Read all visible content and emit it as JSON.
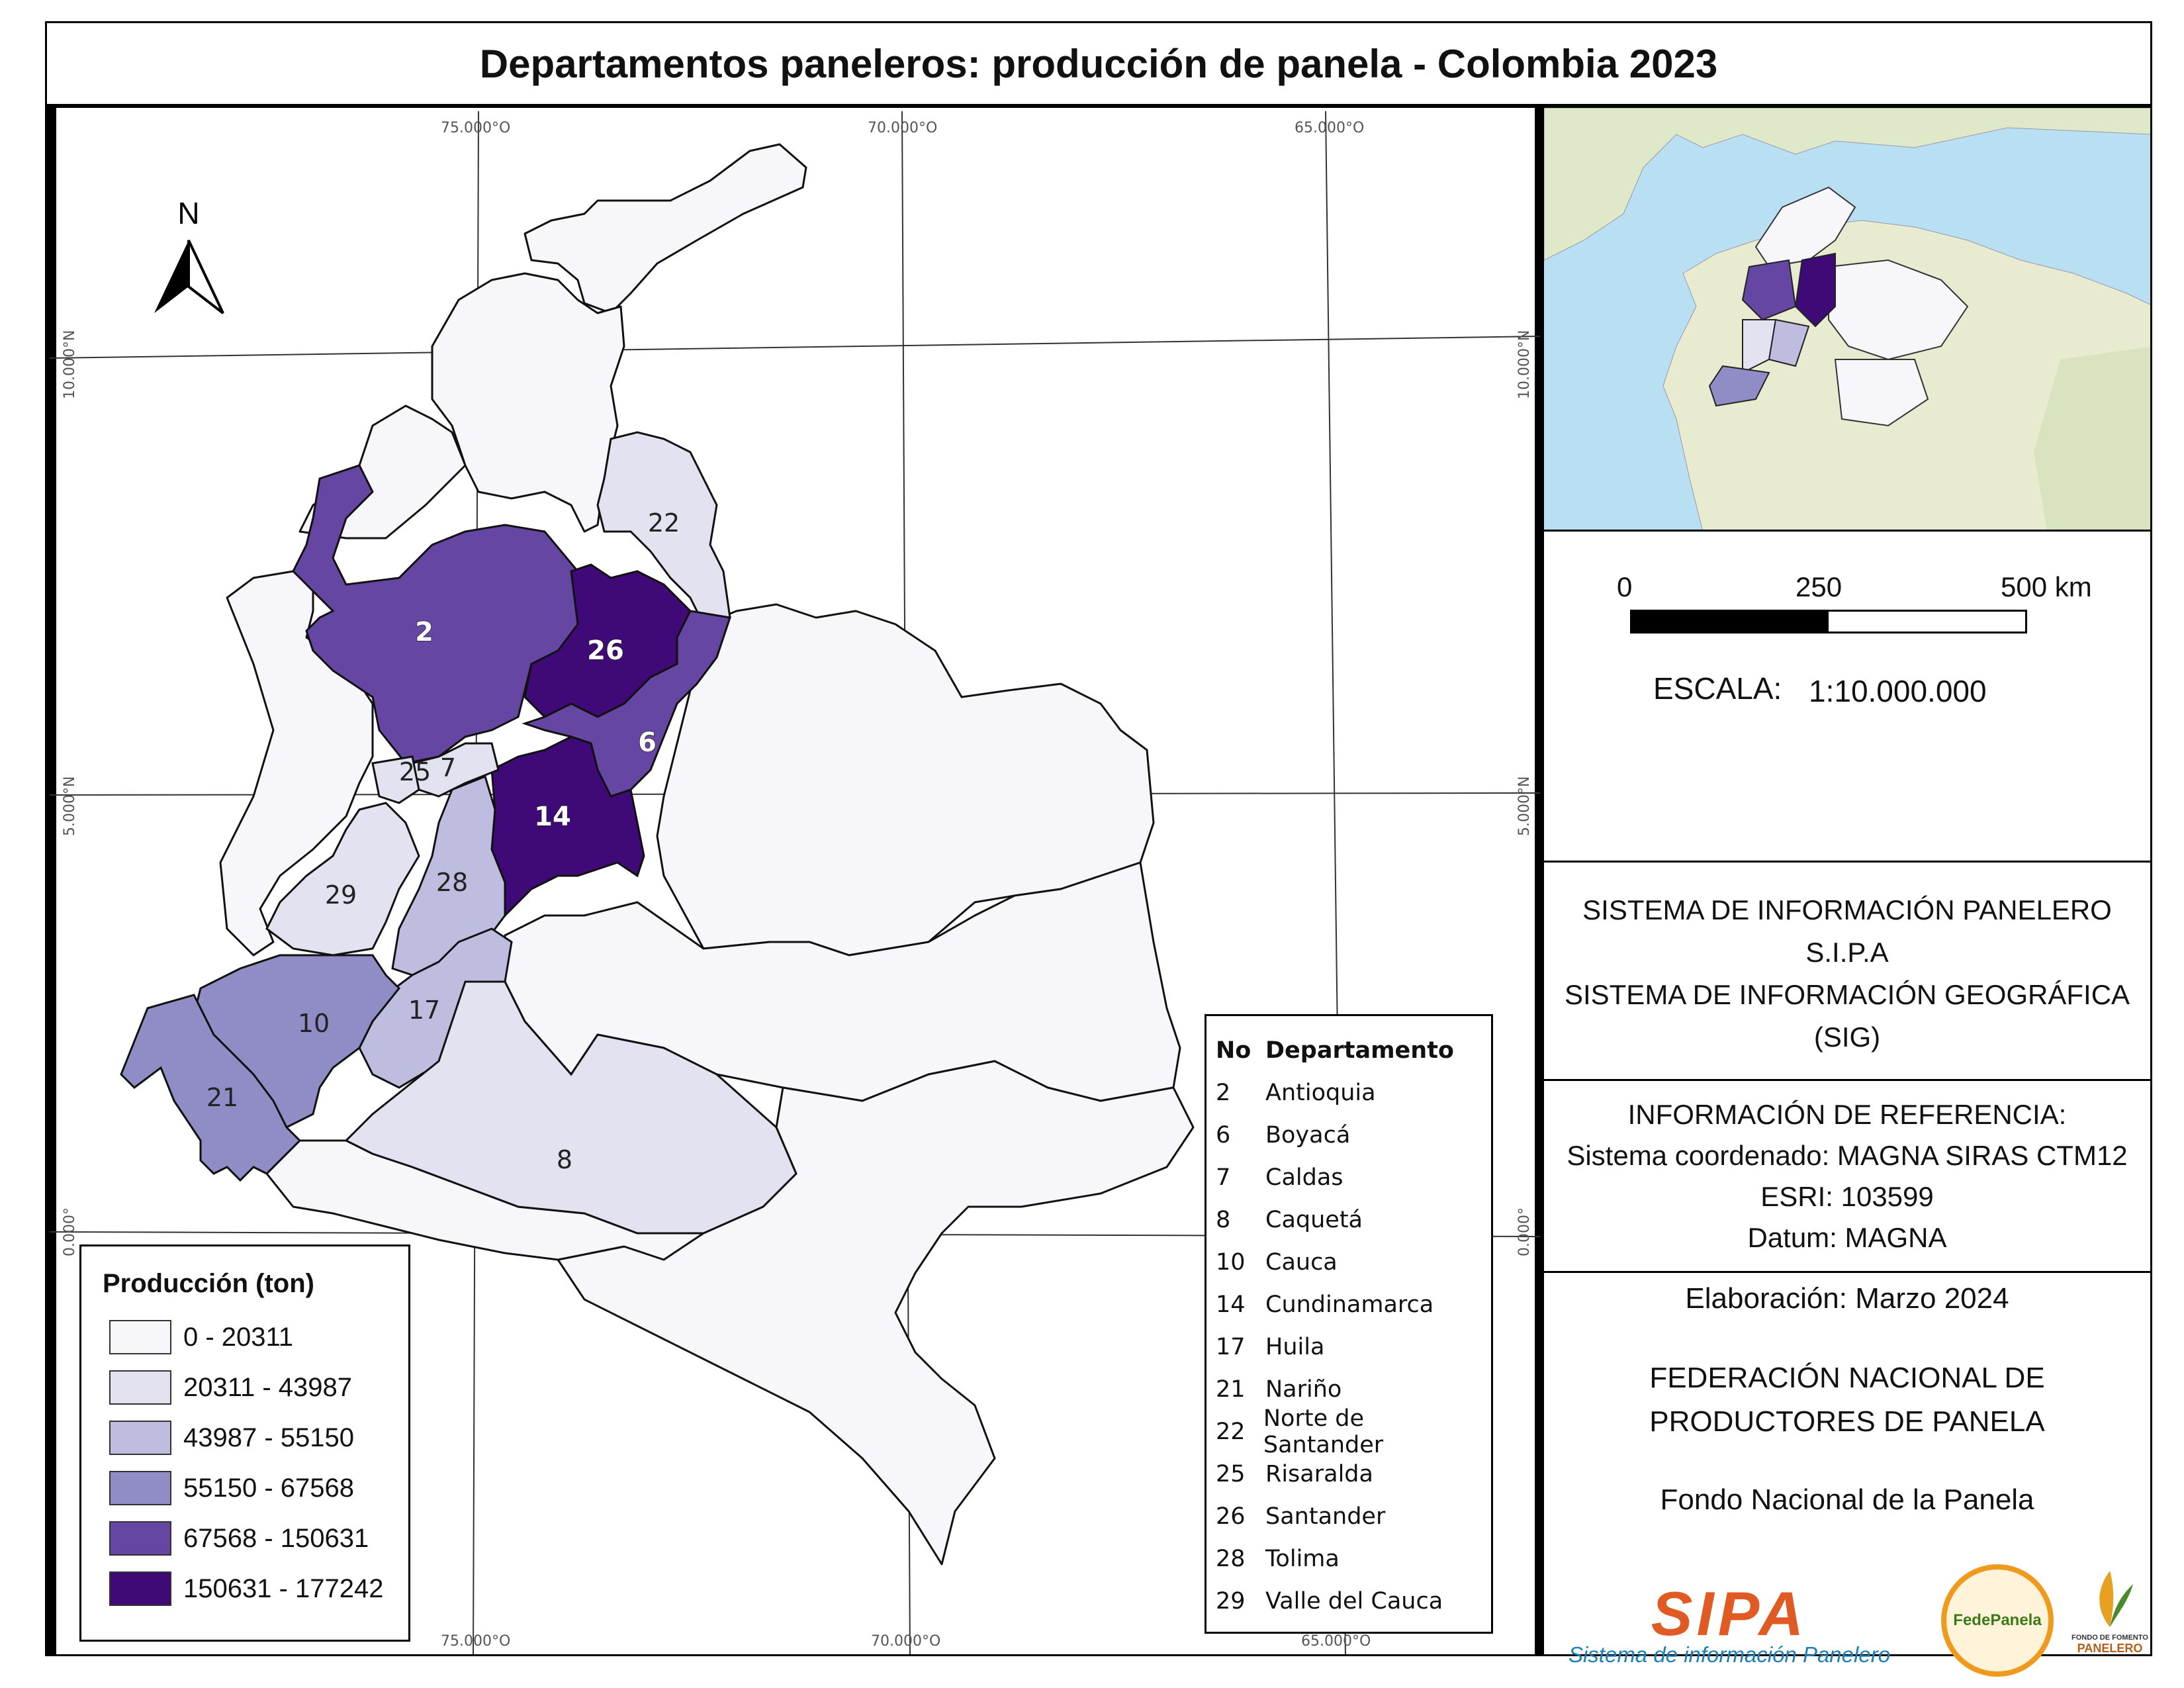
{
  "title": "Departamentos paneleros: producción de panela - Colombia 2023",
  "grid": {
    "top_longitudes": [
      "75.000°O",
      "70.000°O",
      "65.000°O"
    ],
    "bottom_longitudes": [
      "75.000°O",
      "70.000°O",
      "65.000°O"
    ],
    "latitudes": [
      "10.000°N",
      "5.000°N",
      "0.000°"
    ]
  },
  "north_arrow": "N",
  "map_labels": {
    "d2": "2",
    "d6": "6",
    "d7": "7",
    "d8": "8",
    "d10": "10",
    "d14": "14",
    "d17": "17",
    "d21": "21",
    "d22": "22",
    "d25": "25",
    "d26": "26",
    "d28": "28",
    "d29": "29"
  },
  "legend": {
    "title": "Producción (ton)",
    "classes": [
      {
        "label": "0 - 20311",
        "color": "#f7f6fb"
      },
      {
        "label": "20311 - 43987",
        "color": "#e3e2f1"
      },
      {
        "label": "43987 - 55150",
        "color": "#bebde0"
      },
      {
        "label": "55150 - 67568",
        "color": "#8f8cc6"
      },
      {
        "label": "67568 - 150631",
        "color": "#6546a3"
      },
      {
        "label": "150631 - 177242",
        "color": "#3f0a78"
      }
    ]
  },
  "dept_table": {
    "header_no": "No",
    "header_name": "Departamento",
    "rows": [
      {
        "no": "2",
        "name": "Antioquia"
      },
      {
        "no": "6",
        "name": "Boyacá"
      },
      {
        "no": "7",
        "name": "Caldas"
      },
      {
        "no": "8",
        "name": "Caquetá"
      },
      {
        "no": "10",
        "name": "Cauca"
      },
      {
        "no": "14",
        "name": "Cundinamarca"
      },
      {
        "no": "17",
        "name": "Huila"
      },
      {
        "no": "21",
        "name": "Nariño"
      },
      {
        "no": "22",
        "name": "Norte de Santander"
      },
      {
        "no": "25",
        "name": "Risaralda"
      },
      {
        "no": "26",
        "name": "Santander"
      },
      {
        "no": "28",
        "name": "Tolima"
      },
      {
        "no": "29",
        "name": "Valle del Cauca"
      }
    ]
  },
  "scale": {
    "ticks": [
      "0",
      "250",
      "500 km"
    ],
    "label": "ESCALA:",
    "value": "1:10.000.000"
  },
  "sig": {
    "line1": "SISTEMA DE INFORMACIÓN PANELERO",
    "line2": "S.I.P.A",
    "line3": "SISTEMA DE INFORMACIÓN GEOGRÁFICA",
    "line4": "(SIG)"
  },
  "reference": {
    "title": "INFORMACIÓN DE REFERENCIA:",
    "system": "Sistema coordenado: MAGNA SIRAS CTM12",
    "esri": "ESRI: 103599",
    "datum": "Datum: MAGNA"
  },
  "credits": {
    "elaboration": "Elaboración: Marzo 2024",
    "federation_1": "FEDERACIÓN NACIONAL DE",
    "federation_2": "PRODUCTORES DE PANELA",
    "fund": "Fondo Nacional de la Panela"
  },
  "logos": {
    "sipa": "SIPA",
    "sipa_sub": "Sistema de información Panelero",
    "fedepanela": "FedePanela",
    "fondo_small": "FONDO DE FOMENTO",
    "fondo_big": "PANELERO"
  }
}
